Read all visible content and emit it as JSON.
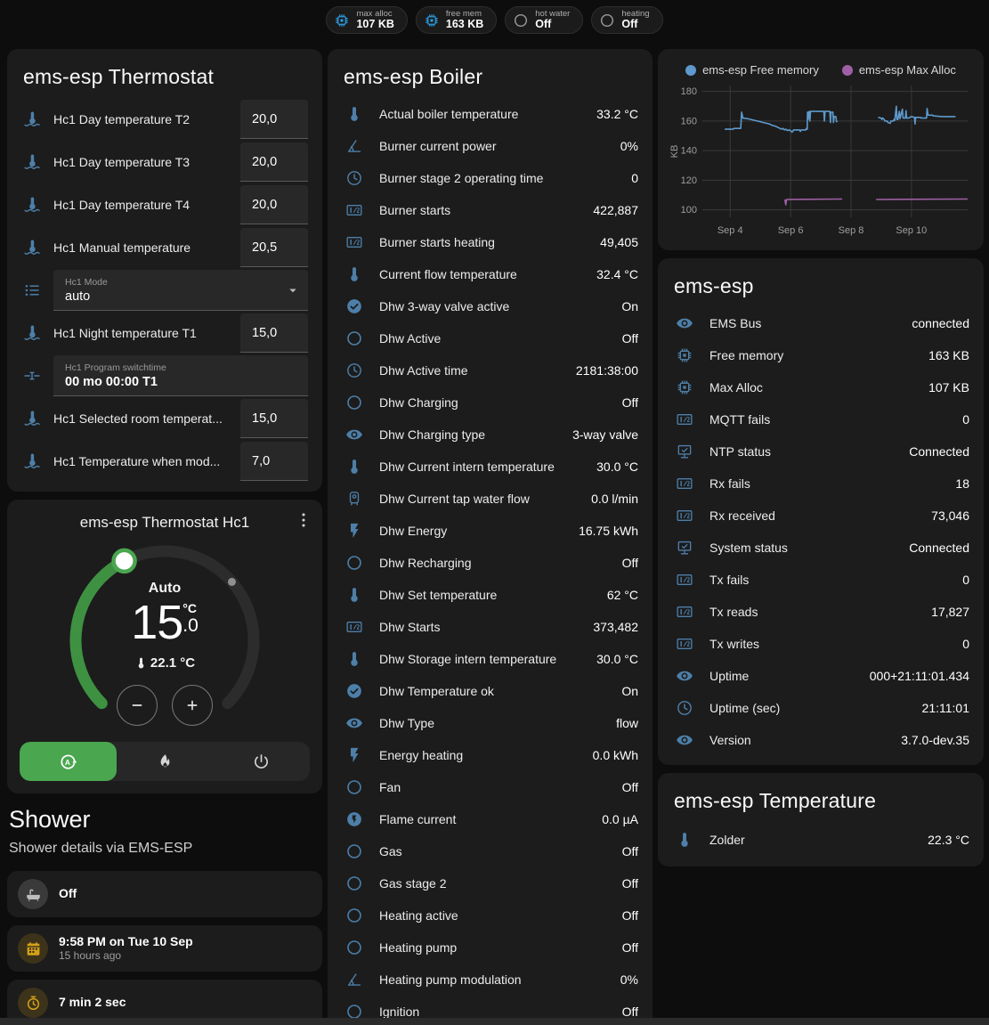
{
  "badges": [
    {
      "icon": "chip",
      "icon_color": "#2d9fe8",
      "label": "max alloc",
      "value": "107 KB"
    },
    {
      "icon": "chip",
      "icon_color": "#2d9fe8",
      "label": "free mem",
      "value": "163 KB"
    },
    {
      "icon": "circle-outline",
      "icon_color": "#9a9a9a",
      "label": "hot water",
      "value": "Off"
    },
    {
      "icon": "circle-outline",
      "icon_color": "#9a9a9a",
      "label": "heating",
      "value": "Off"
    }
  ],
  "thermostat_card": {
    "title": "ems-esp Thermostat",
    "rows": [
      {
        "type": "number",
        "icon": "thermometer-water",
        "label": "Hc1 Day temperature T2",
        "value": "20,0"
      },
      {
        "type": "number",
        "icon": "thermometer-water",
        "label": "Hc1 Day temperature T3",
        "value": "20,0"
      },
      {
        "type": "number",
        "icon": "thermometer-water",
        "label": "Hc1 Day temperature T4",
        "value": "20,0"
      },
      {
        "type": "number",
        "icon": "thermometer-water",
        "label": "Hc1 Manual temperature",
        "value": "20,5"
      },
      {
        "type": "select",
        "icon": "list",
        "label": "Hc1 Mode",
        "value": "auto"
      },
      {
        "type": "number",
        "icon": "thermometer-water",
        "label": "Hc1 Night temperature T1",
        "value": "15,0"
      },
      {
        "type": "text",
        "icon": "pipe",
        "label": "Hc1 Program switchtime",
        "value": "00 mo 00:00 T1"
      },
      {
        "type": "number",
        "icon": "thermometer-water",
        "label": "Hc1 Selected room temperat...",
        "value": "15,0"
      },
      {
        "type": "number",
        "icon": "thermometer-water",
        "label": "Hc1 Temperature when mod...",
        "value": "7,0"
      }
    ]
  },
  "dial_card": {
    "title": "ems-esp Thermostat Hc1",
    "mode_label": "Auto",
    "target_whole": "15",
    "target_decimal": ".0",
    "unit": "°C",
    "current_temperature": "22.1 °C",
    "arc_color": "#3f9142",
    "track_color": "#2c2c2c",
    "modes": [
      {
        "icon": "thermostat-auto",
        "active": true
      },
      {
        "icon": "fire",
        "active": false
      },
      {
        "icon": "power",
        "active": false
      }
    ]
  },
  "shower": {
    "heading": "Shower",
    "subheading": "Shower details via EMS-ESP",
    "tiles": [
      {
        "icon": "bathtub",
        "icon_color": "#bdbdbd",
        "icon_bg": "#3a3a3a",
        "value": "Off"
      },
      {
        "icon": "calendar",
        "icon_color": "#d4a017",
        "icon_bg": "rgba(212,160,23,0.18)",
        "value": "9:58 PM on Tue 10 Sep",
        "secondary": "15 hours ago"
      },
      {
        "icon": "timer",
        "icon_color": "#d4a017",
        "icon_bg": "rgba(212,160,23,0.18)",
        "value": "7 min 2 sec"
      }
    ],
    "alert_icon": "snowflake-alert"
  },
  "boiler_card": {
    "title": "ems-esp Boiler",
    "rows": [
      {
        "icon": "thermometer",
        "label": "Actual boiler temperature",
        "value": "33.2 °C"
      },
      {
        "icon": "angle-acute",
        "label": "Burner current power",
        "value": "0%"
      },
      {
        "icon": "clock-outline",
        "label": "Burner stage 2 operating time",
        "value": "0"
      },
      {
        "icon": "counter",
        "label": "Burner starts",
        "value": "422,887"
      },
      {
        "icon": "counter",
        "label": "Burner starts heating",
        "value": "49,405"
      },
      {
        "icon": "thermometer",
        "label": "Current flow temperature",
        "value": "32.4 °C"
      },
      {
        "icon": "check-circle",
        "label": "Dhw 3-way valve active",
        "value": "On"
      },
      {
        "icon": "circle-outline",
        "label": "Dhw Active",
        "value": "Off"
      },
      {
        "icon": "clock-outline",
        "label": "Dhw Active time",
        "value": "2181:38:00"
      },
      {
        "icon": "circle-outline",
        "label": "Dhw Charging",
        "value": "Off"
      },
      {
        "icon": "eye",
        "label": "Dhw Charging type",
        "value": "3-way valve"
      },
      {
        "icon": "thermometer",
        "label": "Dhw Current intern temperature",
        "value": "30.0 °C"
      },
      {
        "icon": "water-boiler",
        "label": "Dhw Current tap water flow",
        "value": "0.0 l/min"
      },
      {
        "icon": "flash",
        "label": "Dhw Energy",
        "value": "16.75 kWh"
      },
      {
        "icon": "circle-outline",
        "label": "Dhw Recharging",
        "value": "Off"
      },
      {
        "icon": "thermometer",
        "label": "Dhw Set temperature",
        "value": "62 °C"
      },
      {
        "icon": "counter",
        "label": "Dhw Starts",
        "value": "373,482"
      },
      {
        "icon": "thermometer",
        "label": "Dhw Storage intern temperature",
        "value": "30.0 °C"
      },
      {
        "icon": "check-circle",
        "label": "Dhw Temperature ok",
        "value": "On"
      },
      {
        "icon": "eye",
        "label": "Dhw Type",
        "value": "flow"
      },
      {
        "icon": "flash",
        "label": "Energy heating",
        "value": "0.0 kWh"
      },
      {
        "icon": "circle-outline",
        "label": "Fan",
        "value": "Off"
      },
      {
        "icon": "flash-circle",
        "label": "Flame current",
        "value": "0.0 µA"
      },
      {
        "icon": "circle-outline",
        "label": "Gas",
        "value": "Off"
      },
      {
        "icon": "circle-outline",
        "label": "Gas stage 2",
        "value": "Off"
      },
      {
        "icon": "circle-outline",
        "label": "Heating active",
        "value": "Off"
      },
      {
        "icon": "circle-outline",
        "label": "Heating pump",
        "value": "Off"
      },
      {
        "icon": "angle-acute",
        "label": "Heating pump modulation",
        "value": "0%"
      },
      {
        "icon": "circle-outline",
        "label": "Ignition",
        "value": "Off"
      }
    ]
  },
  "emsesp_card": {
    "title": "ems-esp",
    "rows": [
      {
        "icon": "eye",
        "label": "EMS Bus",
        "value": "connected"
      },
      {
        "icon": "chip",
        "label": "Free memory",
        "value": "163 KB"
      },
      {
        "icon": "chip",
        "label": "Max Alloc",
        "value": "107 KB"
      },
      {
        "icon": "counter",
        "label": "MQTT fails",
        "value": "0"
      },
      {
        "icon": "network-check",
        "label": "NTP status",
        "value": "Connected"
      },
      {
        "icon": "counter",
        "label": "Rx fails",
        "value": "18"
      },
      {
        "icon": "counter",
        "label": "Rx received",
        "value": "73,046"
      },
      {
        "icon": "network-check",
        "label": "System status",
        "value": "Connected"
      },
      {
        "icon": "counter",
        "label": "Tx fails",
        "value": "0"
      },
      {
        "icon": "counter",
        "label": "Tx reads",
        "value": "17,827"
      },
      {
        "icon": "counter",
        "label": "Tx writes",
        "value": "0"
      },
      {
        "icon": "eye",
        "label": "Uptime",
        "value": "000+21:11:01.434"
      },
      {
        "icon": "clock-outline",
        "label": "Uptime (sec)",
        "value": "21:11:01"
      },
      {
        "icon": "eye",
        "label": "Version",
        "value": "3.7.0-dev.35"
      }
    ]
  },
  "temperature_card": {
    "title": "ems-esp Temperature",
    "rows": [
      {
        "icon": "thermometer",
        "label": "Zolder",
        "value": "22.3 °C"
      }
    ]
  },
  "chart_data": {
    "type": "line",
    "ylabel": "KB",
    "grid": true,
    "legend_position": "top",
    "xlim": [
      3.08,
      11.86
    ],
    "ylim": [
      95,
      184
    ],
    "yticks": [
      100,
      120,
      140,
      160,
      180
    ],
    "xticks": [
      {
        "x": 4,
        "label": "Sep 4"
      },
      {
        "x": 6,
        "label": "Sep 6"
      },
      {
        "x": 8,
        "label": "Sep 8"
      },
      {
        "x": 10,
        "label": "Sep 10"
      }
    ],
    "series": [
      {
        "name": "ems-esp Free memory",
        "color": "#5d99cc",
        "points": [
          [
            3.82,
            154.5
          ],
          [
            4.1,
            154.5
          ],
          [
            4.12,
            155
          ],
          [
            4.35,
            155
          ],
          [
            4.38,
            166
          ],
          [
            4.42,
            162
          ],
          [
            4.6,
            161.5
          ],
          [
            4.8,
            160.5
          ],
          [
            5.0,
            159.5
          ],
          [
            5.1,
            159
          ],
          [
            5.2,
            158.5
          ],
          [
            5.3,
            158
          ],
          [
            5.4,
            157
          ],
          [
            5.5,
            156.5
          ],
          [
            5.6,
            155.5
          ],
          [
            5.65,
            155
          ],
          [
            5.7,
            154.5
          ],
          [
            5.75,
            155
          ],
          [
            5.8,
            154
          ],
          [
            5.85,
            154.5
          ],
          [
            5.9,
            153.5
          ],
          [
            5.95,
            154
          ],
          [
            6.0,
            153.5
          ],
          [
            6.05,
            152.5
          ],
          [
            6.1,
            154
          ],
          [
            6.3,
            154
          ],
          [
            6.32,
            153
          ],
          [
            6.35,
            154
          ],
          [
            6.5,
            154
          ],
          [
            6.52,
            155
          ],
          [
            6.55,
            154.5
          ],
          [
            6.56,
            166
          ],
          [
            6.58,
            161
          ],
          [
            6.6,
            166
          ],
          [
            6.62,
            166.5
          ],
          [
            6.64,
            160
          ],
          [
            6.66,
            166.5
          ],
          [
            7.1,
            166.5
          ],
          [
            7.12,
            160
          ],
          [
            7.14,
            166.5
          ],
          [
            7.3,
            166.5
          ],
          [
            7.32,
            159
          ],
          [
            7.34,
            166
          ],
          [
            7.4,
            166
          ],
          [
            7.42,
            159
          ],
          [
            7.44,
            163
          ],
          [
            7.5,
            163
          ],
          [
            7.52,
            159.5
          ],
          [
            7.55,
            160
          ],
          null,
          [
            8.9,
            162.5
          ],
          [
            9.0,
            162
          ],
          [
            9.02,
            161
          ],
          [
            9.05,
            162
          ],
          [
            9.1,
            161
          ],
          [
            9.12,
            160
          ],
          [
            9.2,
            160
          ],
          [
            9.22,
            159
          ],
          [
            9.3,
            158.5
          ],
          [
            9.32,
            160
          ],
          [
            9.4,
            160
          ],
          [
            9.42,
            161
          ],
          [
            9.45,
            160.5
          ],
          [
            9.5,
            170
          ],
          [
            9.52,
            161
          ],
          [
            9.55,
            161
          ],
          [
            9.6,
            166.5
          ],
          [
            9.62,
            161.5
          ],
          [
            9.7,
            168
          ],
          [
            9.72,
            162
          ],
          [
            9.8,
            162
          ],
          [
            9.82,
            167
          ],
          [
            9.84,
            162
          ],
          [
            9.9,
            162
          ],
          [
            10.0,
            163
          ],
          [
            10.1,
            162.5
          ],
          [
            10.12,
            158
          ],
          [
            10.14,
            162.5
          ],
          [
            10.3,
            162.5
          ],
          [
            10.32,
            162
          ],
          [
            10.5,
            162
          ],
          [
            10.52,
            168.5
          ],
          [
            10.55,
            164
          ],
          [
            10.7,
            164
          ],
          [
            10.72,
            163.5
          ],
          [
            11.0,
            163
          ],
          [
            11.46,
            163
          ]
        ]
      },
      {
        "name": "ems-esp Max Alloc",
        "color": "#9f5fa5",
        "points": [
          [
            5.81,
            107
          ],
          [
            5.84,
            103.5
          ],
          [
            5.87,
            107
          ],
          [
            7.71,
            107.3
          ],
          null,
          [
            8.83,
            107
          ],
          [
            11.86,
            107.3
          ]
        ]
      }
    ]
  }
}
